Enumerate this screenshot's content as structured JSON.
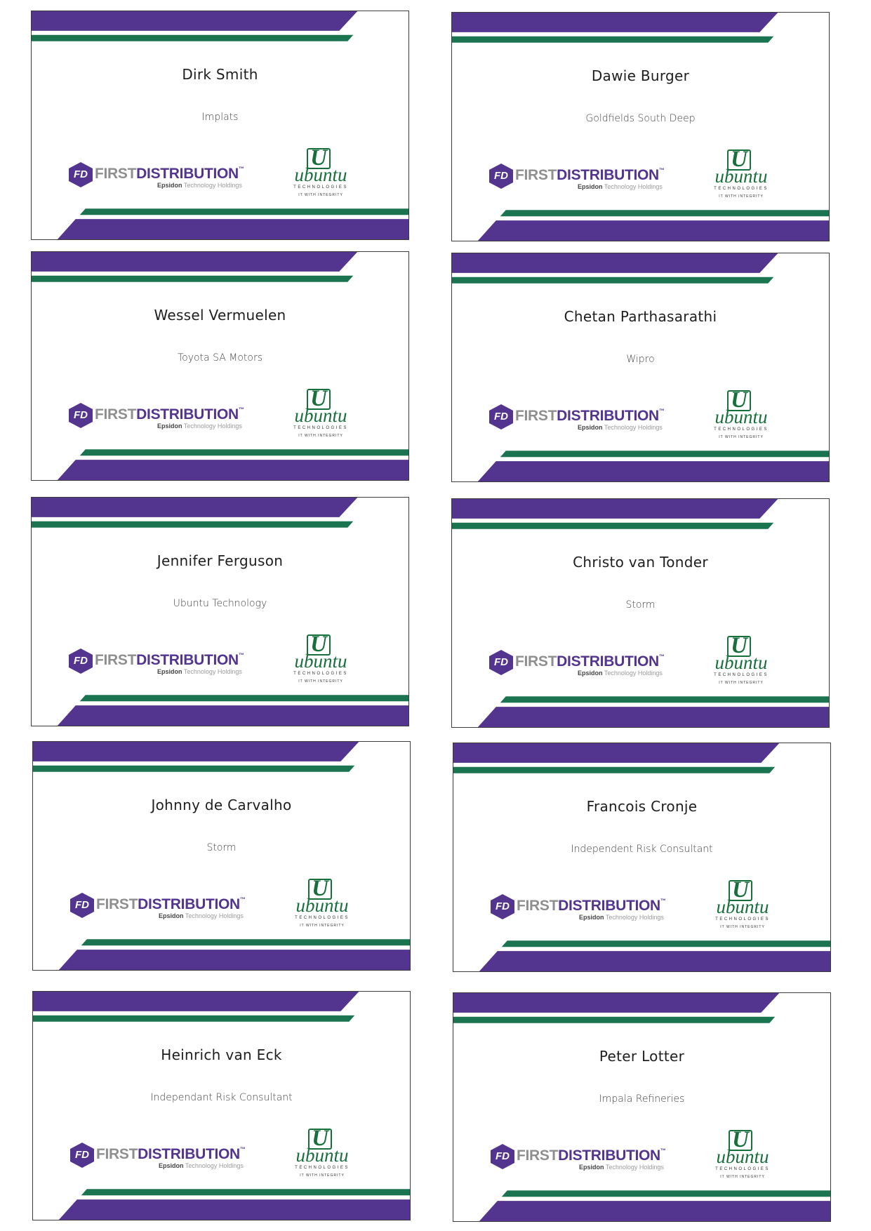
{
  "colors": {
    "purple": "#53358f",
    "green": "#1a7450",
    "ubuntu_green": "#176f3c"
  },
  "logos": {
    "fd_mark": "FD",
    "fd_first": "FIRST",
    "fd_distribution": "DISTRIBUTION",
    "fd_tm": "™",
    "fd_sub_bold": "Epsidon",
    "fd_sub": " Technology Holdings",
    "ub_mark": "U",
    "ub_word": "ubuntu",
    "ub_tech": "TECHNOLOGIES",
    "ub_tag": "IT WITH INTEGRITY"
  },
  "badges": [
    {
      "name": "Dirk Smith",
      "organization": "Implats"
    },
    {
      "name": "Dawie Burger",
      "organization": "Goldfields South Deep"
    },
    {
      "name": "Wessel Vermuelen",
      "organization": "Toyota SA Motors"
    },
    {
      "name": "Chetan Parthasarathi",
      "organization": "Wipro"
    },
    {
      "name": "Jennifer Ferguson",
      "organization": "Ubuntu Technology"
    },
    {
      "name": "Christo van Tonder",
      "organization": "Storm"
    },
    {
      "name": "Johnny de Carvalho",
      "organization": "Storm"
    },
    {
      "name": "Francois Cronje",
      "organization": "Independent Risk Consultant"
    },
    {
      "name": "Heinrich van Eck",
      "organization": "Independant Risk Consultant"
    },
    {
      "name": "Peter Lotter",
      "organization": "Impala Refineries"
    }
  ]
}
